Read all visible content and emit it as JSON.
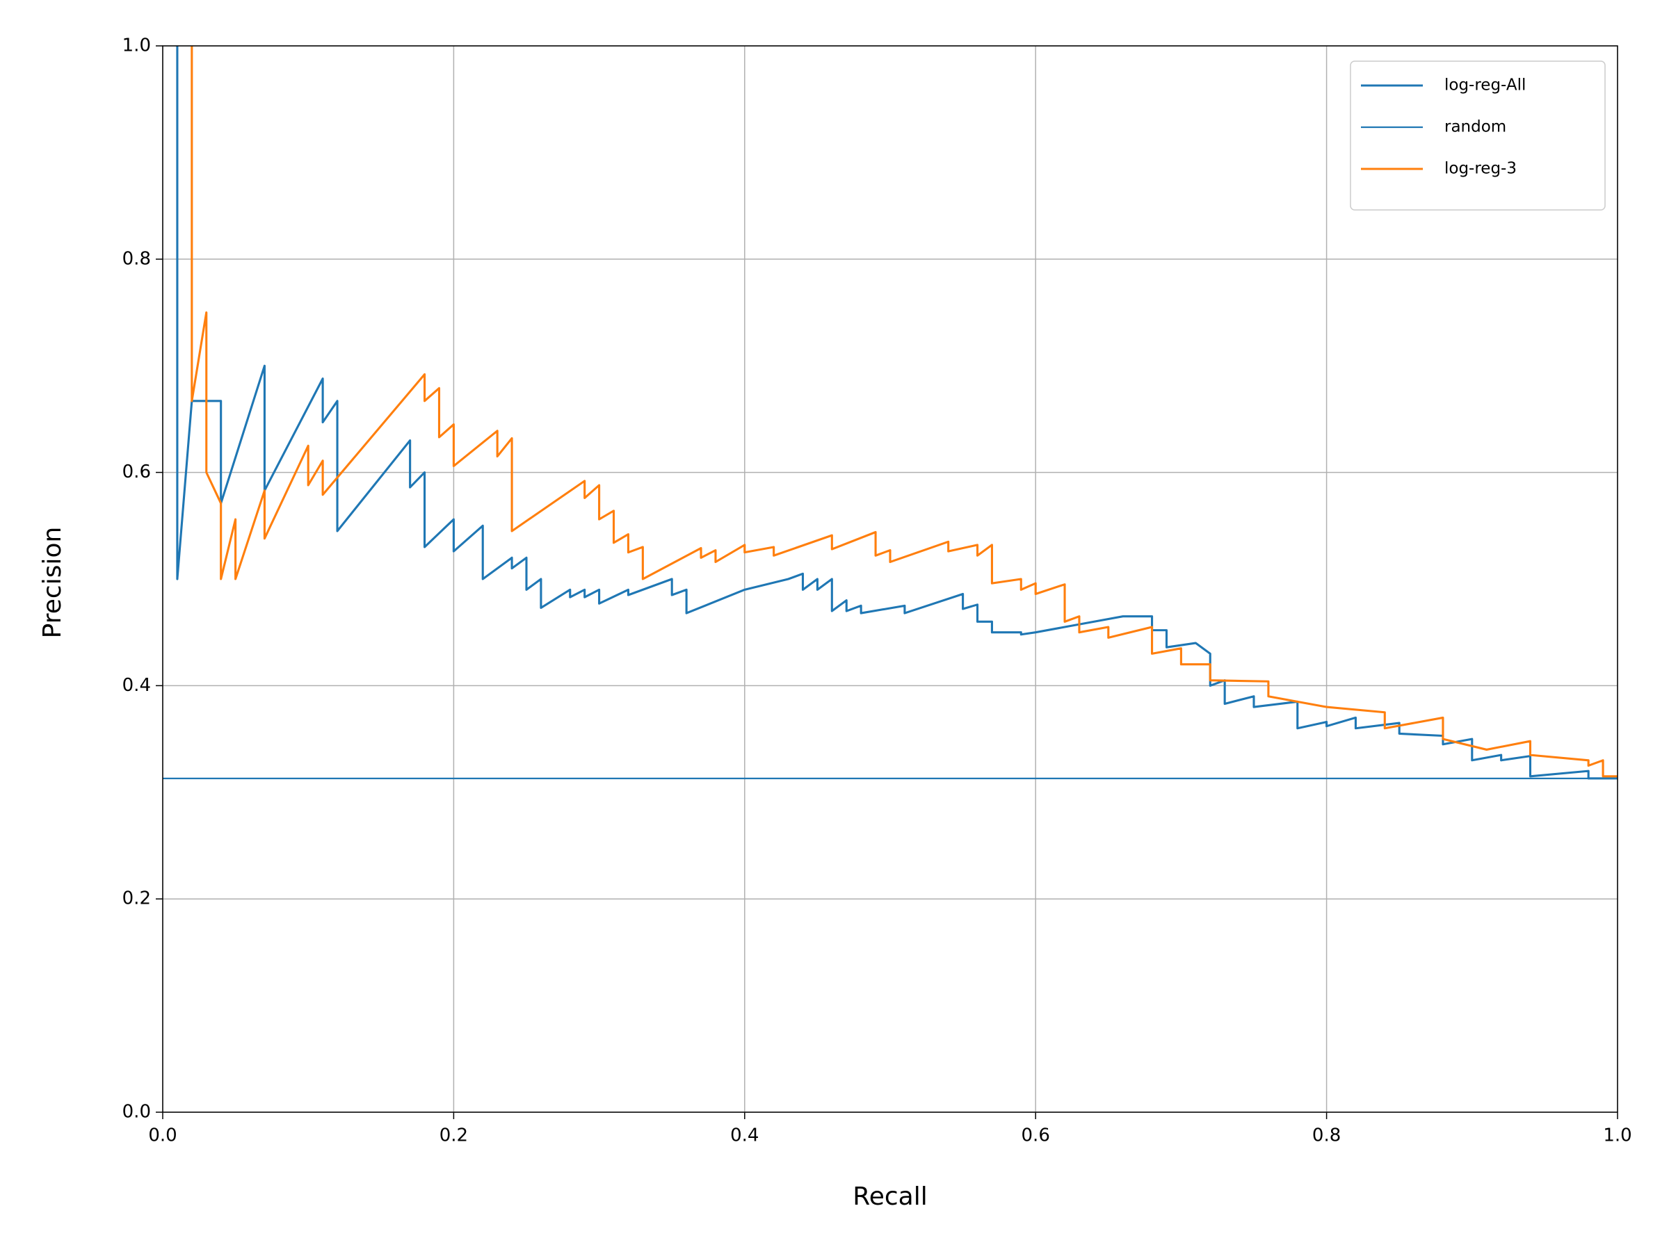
{
  "chart_data": {
    "type": "line",
    "xlabel": "Recall",
    "ylabel": "Precision",
    "xlim": [
      0,
      1
    ],
    "ylim": [
      0,
      1
    ],
    "xticks": [
      {
        "value": 0,
        "label": "0.0"
      },
      0.2,
      0.4,
      0.6,
      0.8,
      {
        "value": 1,
        "label": "1.0"
      }
    ],
    "yticks": [
      {
        "value": 0,
        "label": "0.0"
      },
      0.2,
      0.4,
      0.6,
      0.8,
      {
        "value": 1,
        "label": "1.0"
      }
    ],
    "grid": true,
    "legend": "upper right",
    "series": [
      {
        "name": "log-reg-All",
        "color": "#1f77b4",
        "linewidth": 2,
        "x": [
          0.01,
          0.01,
          0.02,
          0.04,
          0.04,
          0.07,
          0.07,
          0.11,
          0.11,
          0.12,
          0.12,
          0.17,
          0.17,
          0.18,
          0.18,
          0.2,
          0.2,
          0.22,
          0.22,
          0.24,
          0.24,
          0.25,
          0.25,
          0.26,
          0.26,
          0.28,
          0.28,
          0.29,
          0.29,
          0.3,
          0.3,
          0.32,
          0.32,
          0.35,
          0.35,
          0.36,
          0.36,
          0.4,
          0.43,
          0.44,
          0.44,
          0.45,
          0.45,
          0.46,
          0.46,
          0.47,
          0.47,
          0.48,
          0.48,
          0.51,
          0.51,
          0.55,
          0.55,
          0.56,
          0.56,
          0.57,
          0.57,
          0.59,
          0.59,
          0.6,
          0.62,
          0.66,
          0.68,
          0.68,
          0.69,
          0.69,
          0.71,
          0.72,
          0.72,
          0.73,
          0.73,
          0.75,
          0.75,
          0.78,
          0.78,
          0.8,
          0.8,
          0.82,
          0.82,
          0.85,
          0.85,
          0.88,
          0.88,
          0.9,
          0.9,
          0.92,
          0.92,
          0.94,
          0.94,
          0.98,
          0.98,
          1.0
        ],
        "values": [
          1.0,
          0.5,
          0.667,
          0.667,
          0.571,
          0.7,
          0.583,
          0.688,
          0.647,
          0.667,
          0.545,
          0.63,
          0.586,
          0.6,
          0.53,
          0.556,
          0.526,
          0.55,
          0.5,
          0.52,
          0.51,
          0.52,
          0.49,
          0.5,
          0.473,
          0.49,
          0.483,
          0.49,
          0.483,
          0.49,
          0.477,
          0.49,
          0.485,
          0.5,
          0.485,
          0.49,
          0.468,
          0.49,
          0.5,
          0.505,
          0.49,
          0.5,
          0.49,
          0.5,
          0.47,
          0.48,
          0.47,
          0.475,
          0.468,
          0.475,
          0.468,
          0.486,
          0.472,
          0.476,
          0.46,
          0.46,
          0.45,
          0.45,
          0.448,
          0.45,
          0.455,
          0.465,
          0.465,
          0.452,
          0.452,
          0.436,
          0.44,
          0.43,
          0.4,
          0.405,
          0.383,
          0.39,
          0.38,
          0.385,
          0.36,
          0.366,
          0.362,
          0.37,
          0.36,
          0.365,
          0.355,
          0.353,
          0.345,
          0.35,
          0.33,
          0.335,
          0.33,
          0.334,
          0.315,
          0.32,
          0.313,
          0.313
        ]
      },
      {
        "name": "random",
        "color": "#1f77b4",
        "linewidth": 1.5,
        "x": [
          0,
          1
        ],
        "values": [
          0.313,
          0.313
        ]
      },
      {
        "name": "log-reg-3",
        "color": "#ff7f0e",
        "linewidth": 2,
        "x": [
          0.02,
          0.02,
          0.03,
          0.03,
          0.04,
          0.04,
          0.05,
          0.05,
          0.07,
          0.07,
          0.1,
          0.1,
          0.11,
          0.11,
          0.18,
          0.18,
          0.19,
          0.19,
          0.2,
          0.2,
          0.23,
          0.23,
          0.24,
          0.24,
          0.29,
          0.29,
          0.3,
          0.3,
          0.31,
          0.31,
          0.32,
          0.32,
          0.33,
          0.33,
          0.37,
          0.37,
          0.38,
          0.38,
          0.4,
          0.4,
          0.42,
          0.42,
          0.46,
          0.46,
          0.49,
          0.49,
          0.5,
          0.5,
          0.54,
          0.54,
          0.56,
          0.56,
          0.57,
          0.57,
          0.59,
          0.59,
          0.6,
          0.6,
          0.62,
          0.62,
          0.63,
          0.63,
          0.65,
          0.65,
          0.68,
          0.68,
          0.7,
          0.7,
          0.72,
          0.72,
          0.76,
          0.76,
          0.8,
          0.84,
          0.84,
          0.88,
          0.88,
          0.91,
          0.94,
          0.94,
          0.98,
          0.98,
          0.99,
          0.99,
          1.0
        ],
        "values": [
          1.0,
          0.667,
          0.75,
          0.6,
          0.571,
          0.5,
          0.556,
          0.5,
          0.583,
          0.538,
          0.625,
          0.588,
          0.611,
          0.579,
          0.692,
          0.667,
          0.679,
          0.633,
          0.645,
          0.606,
          0.639,
          0.615,
          0.632,
          0.545,
          0.592,
          0.576,
          0.588,
          0.556,
          0.564,
          0.534,
          0.542,
          0.525,
          0.53,
          0.5,
          0.529,
          0.52,
          0.527,
          0.516,
          0.532,
          0.525,
          0.53,
          0.522,
          0.541,
          0.528,
          0.544,
          0.522,
          0.527,
          0.516,
          0.535,
          0.526,
          0.532,
          0.522,
          0.532,
          0.496,
          0.5,
          0.49,
          0.496,
          0.486,
          0.495,
          0.46,
          0.465,
          0.45,
          0.455,
          0.445,
          0.455,
          0.43,
          0.435,
          0.42,
          0.42,
          0.405,
          0.404,
          0.39,
          0.38,
          0.375,
          0.36,
          0.37,
          0.35,
          0.34,
          0.348,
          0.335,
          0.33,
          0.325,
          0.33,
          0.315,
          0.315
        ]
      }
    ]
  }
}
